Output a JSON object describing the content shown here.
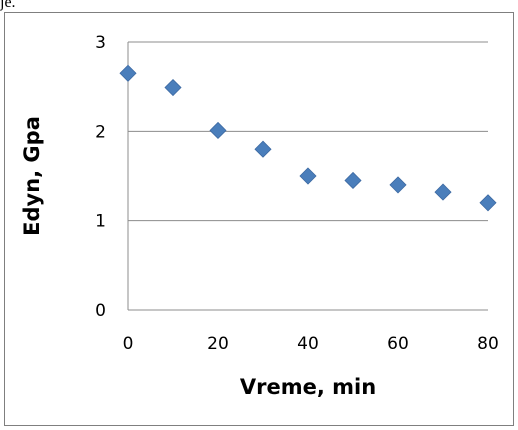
{
  "page": {
    "top_fragment": "je."
  },
  "chart_data": {
    "type": "scatter",
    "title": "",
    "xlabel": "Vreme, min",
    "ylabel": "Edyn, Gpa",
    "xlim": [
      0,
      80
    ],
    "ylim": [
      0,
      3
    ],
    "xticks": [
      0,
      20,
      40,
      60,
      80
    ],
    "yticks": [
      0,
      1,
      2,
      3
    ],
    "grid": "horizontal",
    "legend": "none",
    "marker": "diamond",
    "marker_color": "#4a7ebb",
    "points": [
      {
        "x": 0,
        "y": 2.65
      },
      {
        "x": 10,
        "y": 2.49
      },
      {
        "x": 20,
        "y": 2.01
      },
      {
        "x": 30,
        "y": 1.8
      },
      {
        "x": 40,
        "y": 1.5
      },
      {
        "x": 50,
        "y": 1.45
      },
      {
        "x": 60,
        "y": 1.4
      },
      {
        "x": 70,
        "y": 1.32
      },
      {
        "x": 80,
        "y": 1.2
      }
    ]
  }
}
